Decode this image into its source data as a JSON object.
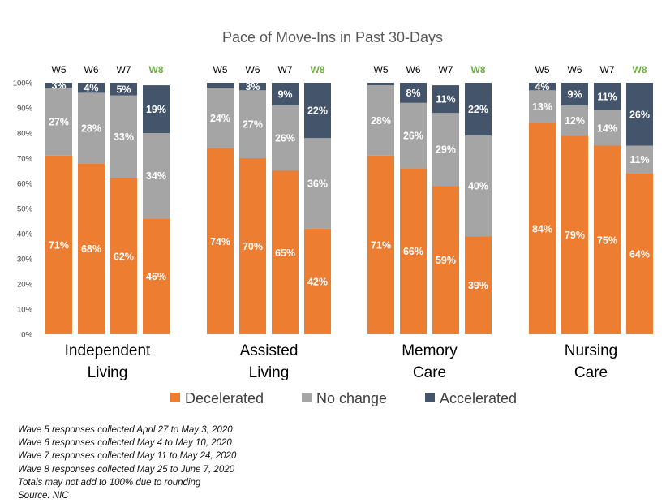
{
  "chart_data": {
    "type": "bar",
    "stacked": true,
    "title": "Pace of Move-Ins in Past 30-Days",
    "y_ticks": [
      "0%",
      "10%",
      "20%",
      "30%",
      "40%",
      "50%",
      "60%",
      "70%",
      "80%",
      "90%",
      "100%"
    ],
    "ylim": [
      0,
      100
    ],
    "grid": false,
    "legend_position": "bottom",
    "highlight_color": "#70ad47",
    "groups": [
      {
        "name": "Independent Living",
        "name_lines": [
          "Independent",
          "Living"
        ],
        "bars": [
          {
            "label": "W5",
            "highlight": false,
            "values": [
              71,
              27,
              3
            ],
            "labels": [
              "71%",
              "27%",
              "3%"
            ]
          },
          {
            "label": "W6",
            "highlight": false,
            "values": [
              68,
              28,
              4
            ],
            "labels": [
              "68%",
              "28%",
              "4%"
            ]
          },
          {
            "label": "W7",
            "highlight": false,
            "values": [
              62,
              33,
              5
            ],
            "labels": [
              "62%",
              "33%",
              "5%"
            ]
          },
          {
            "label": "W8",
            "highlight": true,
            "values": [
              46,
              34,
              19
            ],
            "labels": [
              "46%",
              "34%",
              "19%"
            ]
          }
        ]
      },
      {
        "name": "Assisted Living",
        "name_lines": [
          "Assisted",
          "Living"
        ],
        "bars": [
          {
            "label": "W5",
            "highlight": false,
            "values": [
              74,
              24,
              2
            ],
            "labels": [
              "74%",
              "24%",
              ""
            ]
          },
          {
            "label": "W6",
            "highlight": false,
            "values": [
              70,
              27,
              3
            ],
            "labels": [
              "70%",
              "27%",
              "3%"
            ]
          },
          {
            "label": "W7",
            "highlight": false,
            "values": [
              65,
              26,
              9
            ],
            "labels": [
              "65%",
              "26%",
              "9%"
            ]
          },
          {
            "label": "W8",
            "highlight": true,
            "values": [
              42,
              36,
              22
            ],
            "labels": [
              "42%",
              "36%",
              "22%"
            ]
          }
        ]
      },
      {
        "name": "Memory Care",
        "name_lines": [
          "Memory",
          "Care"
        ],
        "bars": [
          {
            "label": "W5",
            "highlight": false,
            "values": [
              71,
              28,
              1
            ],
            "labels": [
              "71%",
              "28%",
              ""
            ]
          },
          {
            "label": "W6",
            "highlight": false,
            "values": [
              66,
              26,
              8
            ],
            "labels": [
              "66%",
              "26%",
              "8%"
            ]
          },
          {
            "label": "W7",
            "highlight": false,
            "values": [
              59,
              29,
              11
            ],
            "labels": [
              "59%",
              "29%",
              "11%"
            ]
          },
          {
            "label": "W8",
            "highlight": true,
            "values": [
              39,
              40,
              22
            ],
            "labels": [
              "39%",
              "40%",
              "22%"
            ]
          }
        ]
      },
      {
        "name": "Nursing Care",
        "name_lines": [
          "Nursing",
          "Care"
        ],
        "bars": [
          {
            "label": "W5",
            "highlight": false,
            "values": [
              84,
              13,
              4
            ],
            "labels": [
              "84%",
              "13%",
              "4%"
            ]
          },
          {
            "label": "W6",
            "highlight": false,
            "values": [
              79,
              12,
              9
            ],
            "labels": [
              "79%",
              "12%",
              "9%"
            ]
          },
          {
            "label": "W7",
            "highlight": false,
            "values": [
              75,
              14,
              11
            ],
            "labels": [
              "75%",
              "14%",
              "11%"
            ]
          },
          {
            "label": "W8",
            "highlight": true,
            "values": [
              64,
              11,
              26
            ],
            "labels": [
              "64%",
              "11%",
              "26%"
            ]
          }
        ]
      }
    ],
    "series": [
      {
        "name": "Decelerated",
        "color": "#ed7d31"
      },
      {
        "name": "No change",
        "color": "#a5a5a5"
      },
      {
        "name": "Accelerated",
        "color": "#44546a"
      }
    ]
  },
  "notes": [
    "Wave 5 responses collected April 27 to May 3, 2020",
    "Wave 6 responses collected May 4 to May 10, 2020",
    "Wave 7 responses collected May 11 to May 24, 2020",
    "Wave 8 responses collected May 25 to June 7, 2020",
    "Totals may not add to 100% due to rounding",
    "Source: NIC"
  ]
}
